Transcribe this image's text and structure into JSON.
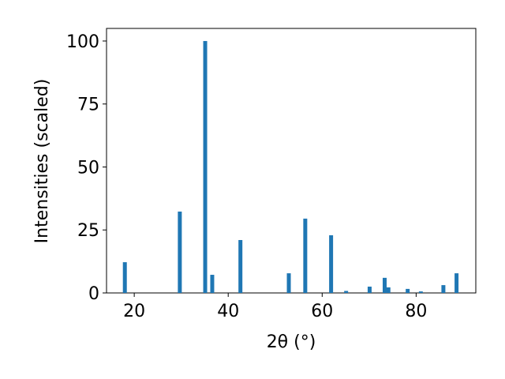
{
  "chart_data": {
    "type": "bar",
    "xlabel": "2θ (°)",
    "ylabel": "Intensities (scaled)",
    "x": [
      18.0,
      29.7,
      35.1,
      36.6,
      42.6,
      52.9,
      56.4,
      61.9,
      65.1,
      70.1,
      73.3,
      74.1,
      78.2,
      81.0,
      85.8,
      88.6
    ],
    "values": [
      12.2,
      32.3,
      100,
      7.2,
      21,
      7.8,
      29.5,
      22.9,
      0.8,
      2.5,
      6,
      2.2,
      1.6,
      0.6,
      3.1,
      7.8
    ],
    "color": "#1f77b4",
    "xlim": [
      14.1,
      92.7
    ],
    "xticks": [
      20,
      40,
      60,
      80
    ],
    "ylim": [
      0,
      105
    ],
    "yticks": [
      0,
      25,
      50,
      75,
      100
    ]
  }
}
